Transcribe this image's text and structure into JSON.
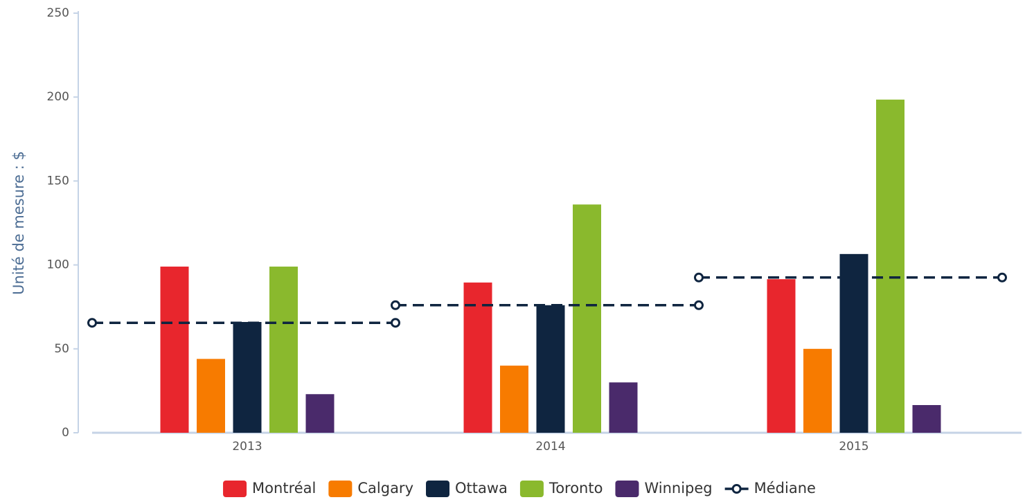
{
  "chart_data": {
    "type": "bar",
    "y_label": "Unité de mesure : $",
    "categories": [
      "2013",
      "2014",
      "2015"
    ],
    "ylim": [
      0,
      250
    ],
    "yticks": [
      0,
      50,
      100,
      150,
      200,
      250
    ],
    "grid": false,
    "legend": "bottom",
    "series": [
      {
        "name": "Montréal",
        "color": "#e8262d",
        "values": [
          99,
          89.5,
          91.5
        ]
      },
      {
        "name": "Calgary",
        "color": "#f77b00",
        "values": [
          44,
          40,
          50
        ]
      },
      {
        "name": "Ottawa",
        "color": "#0f2540",
        "values": [
          66,
          76,
          106.5
        ]
      },
      {
        "name": "Toronto",
        "color": "#8ab92d",
        "values": [
          99,
          136,
          198.5
        ]
      },
      {
        "name": "Winnipeg",
        "color": "#4a2a6b",
        "values": [
          23,
          30,
          16.5
        ]
      },
      {
        "name": "Médiane",
        "color": "#0f2540",
        "type": "line",
        "dashed": true,
        "values": [
          65.5,
          76,
          92.5
        ]
      }
    ]
  }
}
